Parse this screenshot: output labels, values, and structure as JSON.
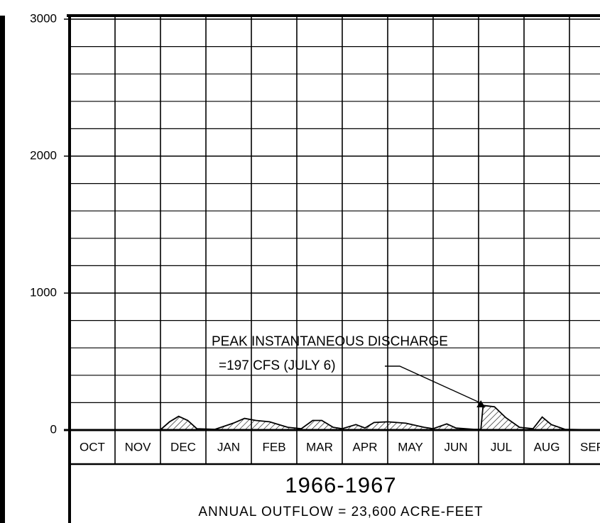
{
  "chart_data": {
    "type": "area",
    "title": "1966-1967",
    "subtitle": "ANNUAL OUTFLOW = 23,600 ACRE-FEET",
    "annotation": [
      "PEAK INSTANTANEOUS DISCHARGE",
      "=197 CFS (JULY 6)"
    ],
    "peak": {
      "x": 9.05,
      "value": 197
    },
    "categories": [
      "OCT",
      "NOV",
      "DEC",
      "JAN",
      "FEB",
      "MAR",
      "APR",
      "MAY",
      "JUN",
      "JUL",
      "AUG",
      "SEP"
    ],
    "xlim": [
      0,
      12
    ],
    "x": [
      0,
      1,
      2.0,
      2.2,
      2.4,
      2.6,
      2.8,
      3.2,
      3.6,
      3.85,
      4.1,
      4.4,
      4.8,
      5.1,
      5.35,
      5.55,
      5.8,
      6.0,
      6.3,
      6.5,
      6.7,
      7.0,
      7.4,
      7.8,
      8.0,
      8.3,
      8.5,
      8.9,
      9.05,
      9.1,
      9.35,
      9.6,
      9.9,
      10.2,
      10.4,
      10.6,
      10.9,
      11.5,
      12
    ],
    "series": [
      {
        "color": "#000000",
        "values": [
          0,
          0,
          2,
          60,
          100,
          70,
          10,
          5,
          50,
          85,
          70,
          60,
          20,
          10,
          70,
          70,
          20,
          10,
          40,
          15,
          55,
          60,
          50,
          20,
          10,
          45,
          15,
          5,
          5,
          180,
          170,
          90,
          20,
          10,
          95,
          40,
          5,
          2,
          2
        ]
      }
    ],
    "ylim": [
      0,
      3000
    ],
    "yticks": [
      0,
      1000,
      2000,
      3000
    ],
    "yminor_ticks": [
      200,
      400,
      600,
      800,
      1200,
      1400,
      1600,
      1800,
      2200,
      2400,
      2600,
      2800
    ],
    "grid": true
  }
}
